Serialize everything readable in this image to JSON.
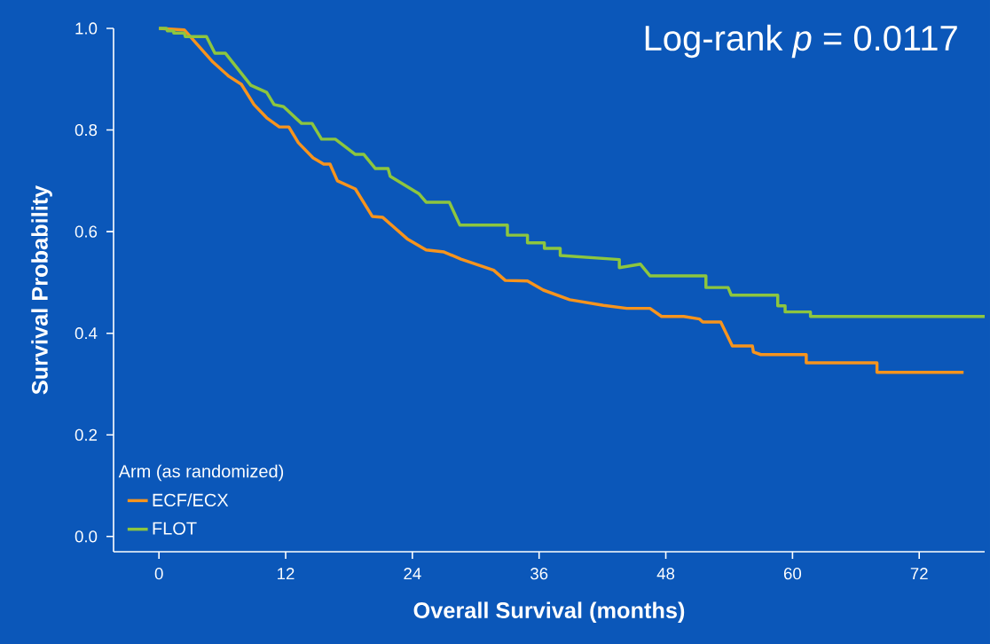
{
  "chart_data": {
    "type": "line",
    "xlabel": "Overall Survival (months)",
    "ylabel": "Survival Probability",
    "legend_title": "Arm (as randomized)",
    "legend": "bottom left",
    "grid": false,
    "marker": "none",
    "line_style": "solid",
    "annotations": [
      "Log-rank *p* = 0.0117"
    ],
    "xlim": [
      -4.3,
      78.2
    ],
    "ylim": [
      -0.03,
      1.0
    ],
    "xticks": [
      0,
      12,
      24,
      36,
      48,
      60,
      72
    ],
    "yticks": [
      {
        "value": 0,
        "label": "0.0"
      },
      {
        "value": 0.2,
        "label": "0.2"
      },
      {
        "value": 0.4,
        "label": "0.4"
      },
      {
        "value": 0.6,
        "label": "0.6"
      },
      {
        "value": 0.8,
        "label": "0.8"
      },
      {
        "value": 1,
        "label": "1.0"
      }
    ],
    "series": [
      {
        "name": "ECF/ECX",
        "color": "#f7941d",
        "x": [
          0,
          2.4,
          5.1,
          6.6,
          7.8,
          9.0,
          10.2,
          11.4,
          12.3,
          13.2,
          14.6,
          15.6,
          16.2,
          16.9,
          18.6,
          20.2,
          21.2,
          23.5,
          25.3,
          27.0,
          28.6,
          31.7,
          32.8,
          34.9,
          36.4,
          38.9,
          42.1,
          44.3,
          46.5,
          47.6,
          49.7,
          51.2,
          51.5,
          53.2,
          54.3,
          56.2,
          56.3,
          57.0,
          61.3,
          61.3,
          68.0,
          68.0,
          76.2
        ],
        "values": [
          1.0,
          0.997,
          0.934,
          0.906,
          0.89,
          0.85,
          0.824,
          0.806,
          0.806,
          0.775,
          0.745,
          0.733,
          0.733,
          0.7,
          0.684,
          0.63,
          0.628,
          0.586,
          0.564,
          0.56,
          0.546,
          0.524,
          0.504,
          0.503,
          0.485,
          0.466,
          0.455,
          0.449,
          0.449,
          0.433,
          0.433,
          0.428,
          0.422,
          0.422,
          0.375,
          0.375,
          0.363,
          0.358,
          0.358,
          0.342,
          0.342,
          0.323,
          0.323
        ]
      },
      {
        "name": "FLOT",
        "color": "#8dc63f",
        "x": [
          0,
          0.7,
          0.8,
          1.4,
          1.4,
          2.4,
          2.5,
          4.5,
          5.3,
          6.3,
          8.7,
          10.2,
          10.9,
          11.8,
          13.5,
          14.5,
          15.4,
          16.7,
          18.6,
          19.4,
          20.5,
          21.7,
          21.9,
          24.6,
          25.3,
          27.5,
          28.5,
          33.0,
          33.0,
          34.9,
          34.9,
          36.5,
          36.5,
          38.0,
          38.0,
          43.6,
          43.6,
          45.6,
          46.5,
          51.8,
          51.8,
          53.9,
          54.2,
          58.6,
          58.6,
          59.3,
          59.3,
          61.7,
          61.7,
          78.2
        ],
        "values": [
          1.0,
          1.0,
          0.995,
          0.995,
          0.991,
          0.991,
          0.984,
          0.984,
          0.951,
          0.951,
          0.888,
          0.874,
          0.85,
          0.846,
          0.813,
          0.813,
          0.782,
          0.782,
          0.752,
          0.752,
          0.724,
          0.724,
          0.709,
          0.675,
          0.658,
          0.658,
          0.613,
          0.613,
          0.593,
          0.593,
          0.578,
          0.578,
          0.567,
          0.567,
          0.553,
          0.545,
          0.529,
          0.536,
          0.513,
          0.513,
          0.49,
          0.49,
          0.475,
          0.475,
          0.454,
          0.454,
          0.442,
          0.442,
          0.433,
          0.433
        ]
      }
    ]
  }
}
